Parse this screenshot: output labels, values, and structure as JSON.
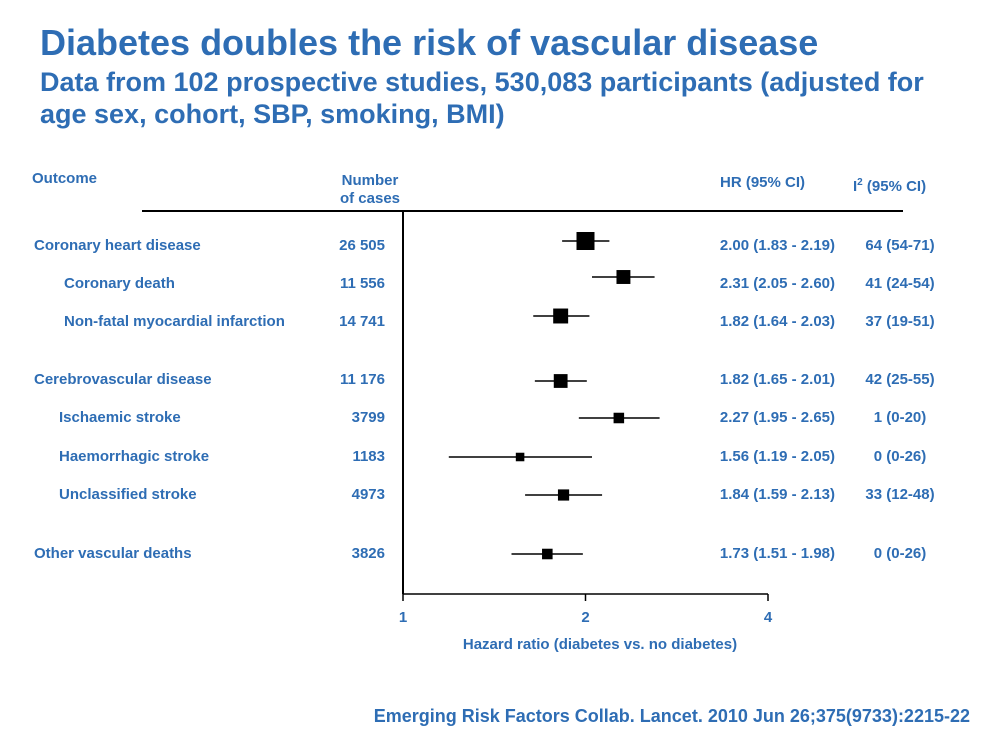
{
  "title": "Diabetes doubles the risk of vascular disease",
  "subtitle": "Data from 102 prospective studies, 530,083 participants (adjusted for age sex, cohort, SBP, smoking, BMI)",
  "headers": {
    "outcome": "Outcome",
    "cases_line1": "Number",
    "cases_line2": "of cases",
    "hr": "HR (95% CI)",
    "i2_sym": "I",
    "i2_sup": "2",
    "i2_rest": " (95% CI)"
  },
  "rows": [
    {
      "outcome": "Coronary heart disease",
      "cases": "26 505",
      "hr_text": "2.00 (1.83 - 2.19)",
      "i2_text": "64 (54-71)"
    },
    {
      "outcome": "Coronary death",
      "cases": "11 556",
      "hr_text": "2.31 (2.05 - 2.60)",
      "i2_text": "41 (24-54)"
    },
    {
      "outcome": "Non-fatal myocardial infarction",
      "cases": "14 741",
      "hr_text": "1.82 (1.64 - 2.03)",
      "i2_text": "37 (19-51)"
    },
    {
      "outcome": "Cerebrovascular disease",
      "cases": "11 176",
      "hr_text": "1.82 (1.65 - 2.01)",
      "i2_text": "42 (25-55)"
    },
    {
      "outcome": "Ischaemic stroke",
      "cases": "3799",
      "hr_text": "2.27 (1.95 - 2.65)",
      "i2_text": "1 (0-20)"
    },
    {
      "outcome": "Haemorrhagic stroke",
      "cases": "1183",
      "hr_text": "1.56 (1.19 - 2.05)",
      "i2_text": "0 (0-26)"
    },
    {
      "outcome": "Unclassified stroke",
      "cases": "4973",
      "hr_text": "1.84 (1.59 - 2.13)",
      "i2_text": "33 (12-48)"
    },
    {
      "outcome": "Other vascular deaths",
      "cases": "3826",
      "hr_text": "1.73 (1.51 - 1.98)",
      "i2_text": "0 (0-26)"
    }
  ],
  "chart_data": {
    "type": "scatter",
    "subtype": "forest-plot",
    "xlabel": "Hazard ratio (diabetes vs. no diabetes)",
    "x_scale": "log",
    "xlim": [
      1,
      4
    ],
    "x_ticks": [
      "1",
      "2",
      "4"
    ],
    "reference_line": 1,
    "series": [
      {
        "outcome": "Coronary heart disease",
        "hr": 2.0,
        "lower": 1.83,
        "upper": 2.19,
        "cases": 26505
      },
      {
        "outcome": "Coronary death",
        "hr": 2.31,
        "lower": 2.05,
        "upper": 2.6,
        "cases": 11556
      },
      {
        "outcome": "Non-fatal myocardial infarction",
        "hr": 1.82,
        "lower": 1.64,
        "upper": 2.03,
        "cases": 14741
      },
      {
        "outcome": "Cerebrovascular disease",
        "hr": 1.82,
        "lower": 1.65,
        "upper": 2.01,
        "cases": 11176
      },
      {
        "outcome": "Ischaemic stroke",
        "hr": 2.27,
        "lower": 1.95,
        "upper": 2.65,
        "cases": 3799
      },
      {
        "outcome": "Haemorrhagic stroke",
        "hr": 1.56,
        "lower": 1.19,
        "upper": 2.05,
        "cases": 1183
      },
      {
        "outcome": "Unclassified stroke",
        "hr": 1.84,
        "lower": 1.59,
        "upper": 2.13,
        "cases": 4973
      },
      {
        "outcome": "Other vascular deaths",
        "hr": 1.73,
        "lower": 1.51,
        "upper": 1.98,
        "cases": 3826
      }
    ]
  },
  "citation": "Emerging Risk Factors Collab. Lancet. 2010 Jun 26;375(9733):2215-22",
  "colors": {
    "text": "#2e6db4",
    "marks": "#000000"
  }
}
